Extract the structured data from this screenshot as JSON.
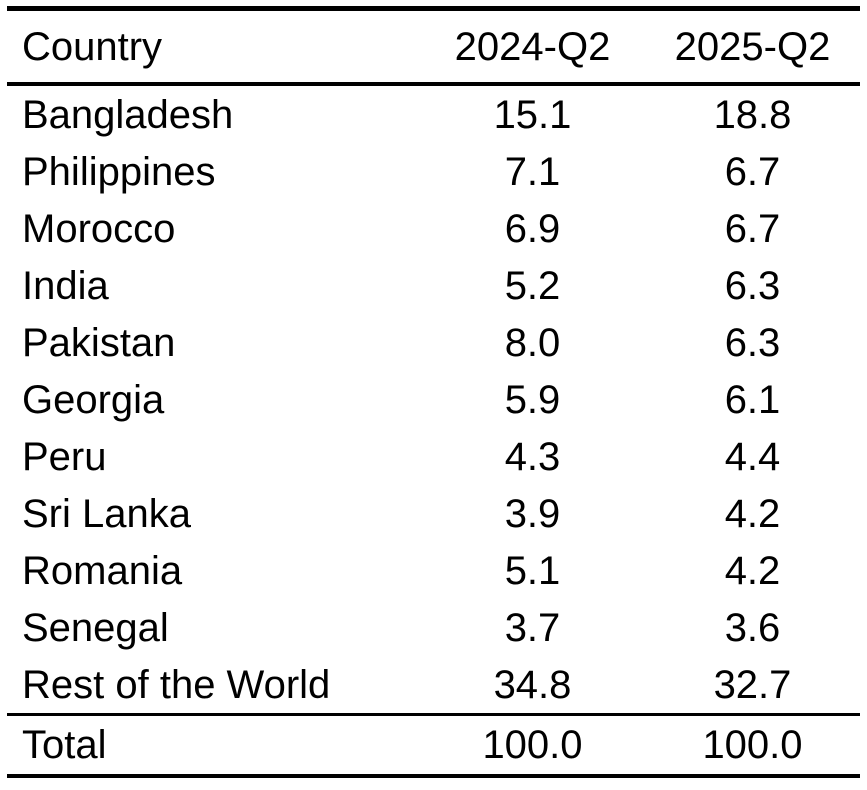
{
  "colors": {
    "text": "#000000",
    "rule": "#000000",
    "background": "#ffffff"
  },
  "table": {
    "columns": {
      "country": "Country",
      "q2_2024": "2024-Q2",
      "q2_2025": "2025-Q2"
    },
    "rows": [
      {
        "country": "Bangladesh",
        "q2_2024": "15.1",
        "q2_2025": "18.8"
      },
      {
        "country": "Philippines",
        "q2_2024": "7.1",
        "q2_2025": "6.7"
      },
      {
        "country": "Morocco",
        "q2_2024": "6.9",
        "q2_2025": "6.7"
      },
      {
        "country": "India",
        "q2_2024": "5.2",
        "q2_2025": "6.3"
      },
      {
        "country": "Pakistan",
        "q2_2024": "8.0",
        "q2_2025": "6.3"
      },
      {
        "country": "Georgia",
        "q2_2024": "5.9",
        "q2_2025": "6.1"
      },
      {
        "country": "Peru",
        "q2_2024": "4.3",
        "q2_2025": "4.4"
      },
      {
        "country": "Sri Lanka",
        "q2_2024": "3.9",
        "q2_2025": "4.2"
      },
      {
        "country": "Romania",
        "q2_2024": "5.1",
        "q2_2025": "4.2"
      },
      {
        "country": "Senegal",
        "q2_2024": "3.7",
        "q2_2025": "3.6"
      },
      {
        "country": "Rest of the World",
        "q2_2024": "34.8",
        "q2_2025": "32.7"
      }
    ],
    "total": {
      "country": "Total",
      "q2_2024": "100.0",
      "q2_2025": "100.0"
    }
  },
  "chart_data": {
    "type": "table",
    "title": "",
    "columns": [
      "Country",
      "2024-Q2",
      "2025-Q2"
    ],
    "rows": [
      [
        "Bangladesh",
        15.1,
        18.8
      ],
      [
        "Philippines",
        7.1,
        6.7
      ],
      [
        "Morocco",
        6.9,
        6.7
      ],
      [
        "India",
        5.2,
        6.3
      ],
      [
        "Pakistan",
        8.0,
        6.3
      ],
      [
        "Georgia",
        5.9,
        6.1
      ],
      [
        "Peru",
        4.3,
        4.4
      ],
      [
        "Sri Lanka",
        3.9,
        4.2
      ],
      [
        "Romania",
        5.1,
        4.2
      ],
      [
        "Senegal",
        3.7,
        3.6
      ],
      [
        "Rest of the World",
        34.8,
        32.7
      ],
      [
        "Total",
        100.0,
        100.0
      ]
    ]
  }
}
